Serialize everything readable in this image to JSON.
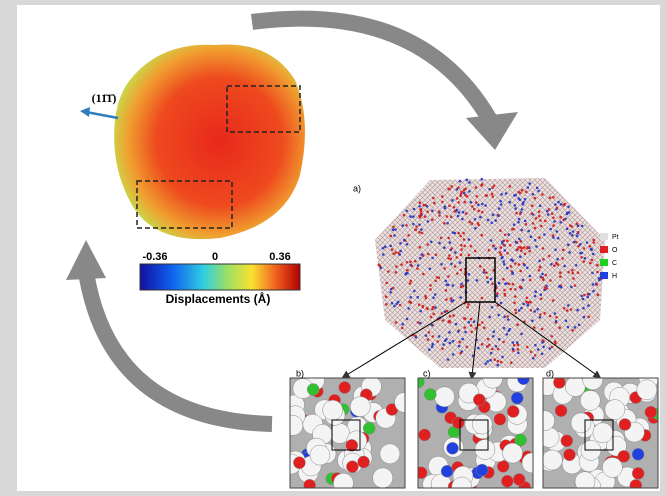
{
  "miller_index": "(11̄1̄)",
  "colorbar": {
    "min_label": "-0.36",
    "mid_label": "0",
    "max_label": "0.36",
    "title": "Displacements (Å)"
  },
  "panels": {
    "a": "a)",
    "b": "b)",
    "c": "c)",
    "d": "d)"
  },
  "legend": [
    "Pt",
    "O",
    "C",
    "H"
  ]
}
